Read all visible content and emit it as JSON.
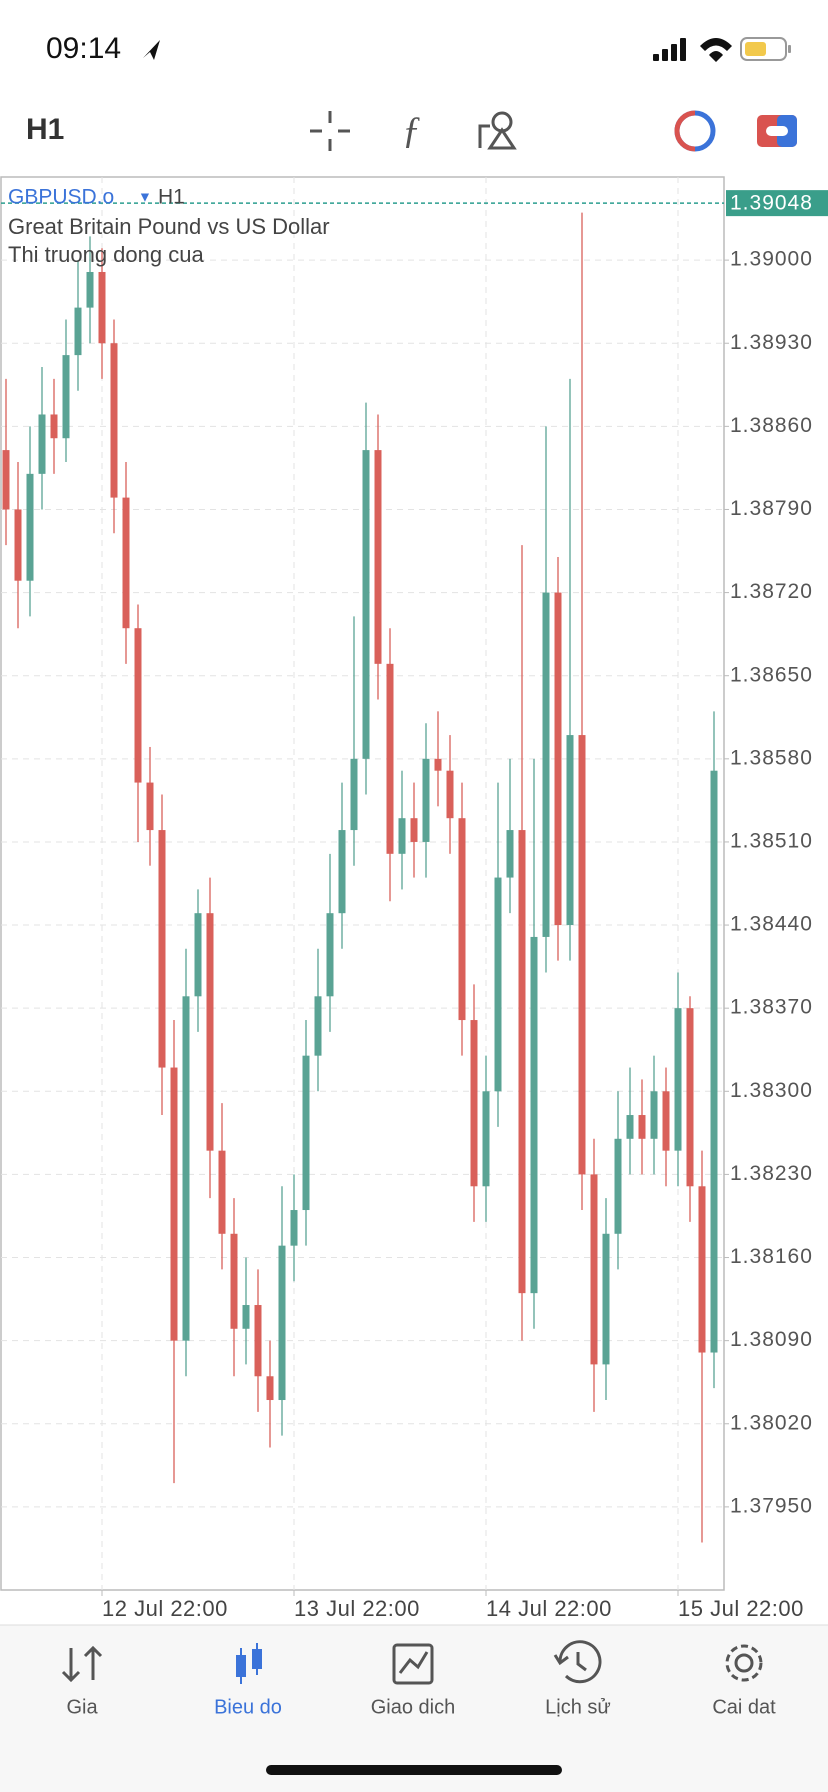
{
  "status_bar": {
    "time": "09:14"
  },
  "toolbar": {
    "timeframe": "H1"
  },
  "chart_data": {
    "type": "candlestick",
    "symbol": "GBPUSD.o",
    "timeframe": "H1",
    "description": "Great Britain Pound vs US Dollar",
    "status": "Thi truong dong cua",
    "open": [
      1.3884,
      1.3879,
      1.3873,
      1.3882,
      1.3887,
      1.3885,
      1.3892,
      1.3896,
      1.3899,
      1.3893,
      1.388,
      1.3869,
      1.3856,
      1.3852,
      1.3832,
      1.3809,
      1.3838,
      1.3845,
      1.3825,
      1.3818,
      1.381,
      1.3812,
      1.3806,
      1.3804,
      1.3817,
      1.382,
      1.3833,
      1.3838,
      1.3845,
      1.3852,
      1.3858,
      1.3884,
      1.3866,
      1.385,
      1.3853,
      1.3851,
      1.3858,
      1.3857,
      1.3853,
      1.3836,
      1.3822,
      1.383,
      1.3848,
      1.3852,
      1.3813,
      1.3843,
      1.3872,
      1.3844,
      1.386,
      1.3823,
      1.3807,
      1.3818,
      1.3826,
      1.3828,
      1.3826,
      1.383,
      1.3825,
      1.3837,
      1.3822,
      1.3808
    ],
    "high": [
      1.389,
      1.3883,
      1.3886,
      1.3891,
      1.389,
      1.3895,
      1.39,
      1.3902,
      1.3901,
      1.3895,
      1.3883,
      1.3871,
      1.3859,
      1.3855,
      1.3836,
      1.3842,
      1.3847,
      1.3848,
      1.3829,
      1.3821,
      1.3816,
      1.3815,
      1.3809,
      1.3822,
      1.3823,
      1.3836,
      1.3842,
      1.385,
      1.3856,
      1.387,
      1.3888,
      1.3887,
      1.3869,
      1.3857,
      1.3856,
      1.3861,
      1.3862,
      1.386,
      1.3856,
      1.3839,
      1.3833,
      1.3856,
      1.3858,
      1.3876,
      1.3858,
      1.3886,
      1.3875,
      1.389,
      1.3904,
      1.3826,
      1.3821,
      1.383,
      1.3832,
      1.3831,
      1.3833,
      1.3832,
      1.384,
      1.3838,
      1.3825,
      1.3862
    ],
    "low": [
      1.3876,
      1.3869,
      1.387,
      1.3879,
      1.3882,
      1.3883,
      1.3889,
      1.3893,
      1.389,
      1.3877,
      1.3866,
      1.3851,
      1.3849,
      1.3828,
      1.3797,
      1.3806,
      1.3835,
      1.3821,
      1.3815,
      1.3806,
      1.3807,
      1.3803,
      1.38,
      1.3801,
      1.3814,
      1.3817,
      1.383,
      1.3835,
      1.3842,
      1.3849,
      1.3855,
      1.3863,
      1.3846,
      1.3847,
      1.3848,
      1.3848,
      1.3854,
      1.385,
      1.3833,
      1.3819,
      1.3819,
      1.3827,
      1.3845,
      1.3809,
      1.381,
      1.384,
      1.3841,
      1.3841,
      1.382,
      1.3803,
      1.3804,
      1.3815,
      1.3823,
      1.3823,
      1.3823,
      1.3822,
      1.3822,
      1.3819,
      1.3792,
      1.3805
    ],
    "close": [
      1.3879,
      1.3873,
      1.3882,
      1.3887,
      1.3885,
      1.3892,
      1.3896,
      1.3899,
      1.3893,
      1.388,
      1.3869,
      1.3856,
      1.3852,
      1.3832,
      1.3809,
      1.3838,
      1.3845,
      1.3825,
      1.3818,
      1.381,
      1.3812,
      1.3806,
      1.3804,
      1.3817,
      1.382,
      1.3833,
      1.3838,
      1.3845,
      1.3852,
      1.3858,
      1.3884,
      1.3866,
      1.385,
      1.3853,
      1.3851,
      1.3858,
      1.3857,
      1.3853,
      1.3836,
      1.3822,
      1.383,
      1.3848,
      1.3852,
      1.3813,
      1.3843,
      1.3872,
      1.3844,
      1.386,
      1.3823,
      1.3807,
      1.3818,
      1.3826,
      1.3828,
      1.3826,
      1.383,
      1.3825,
      1.3837,
      1.3822,
      1.3808,
      1.3857
    ],
    "up_color": "#5aa394",
    "down_color": "#d9605a",
    "ylim": [
      1.3788,
      1.3907
    ],
    "yticks": [
      {
        "value": 1.39,
        "label": "1.39000"
      },
      {
        "value": 1.3893,
        "label": "1.38930"
      },
      {
        "value": 1.3886,
        "label": "1.38860"
      },
      {
        "value": 1.3879,
        "label": "1.38790"
      },
      {
        "value": 1.3872,
        "label": "1.38720"
      },
      {
        "value": 1.3865,
        "label": "1.38650"
      },
      {
        "value": 1.3858,
        "label": "1.38580"
      },
      {
        "value": 1.3851,
        "label": "1.38510"
      },
      {
        "value": 1.3844,
        "label": "1.38440"
      },
      {
        "value": 1.3837,
        "label": "1.38370"
      },
      {
        "value": 1.383,
        "label": "1.38300"
      },
      {
        "value": 1.3823,
        "label": "1.38230"
      },
      {
        "value": 1.3816,
        "label": "1.38160"
      },
      {
        "value": 1.3809,
        "label": "1.38090"
      },
      {
        "value": 1.3802,
        "label": "1.38020"
      },
      {
        "value": 1.3795,
        "label": "1.37950"
      }
    ],
    "xticks": [
      {
        "value": 8,
        "label": "12 Jul 22:00"
      },
      {
        "value": 24,
        "label": "13 Jul 22:00"
      },
      {
        "value": 40,
        "label": "14 Jul 22:00"
      },
      {
        "value": 56,
        "label": "15 Jul 22:00"
      }
    ],
    "current_price": 1.39048,
    "grid": true
  },
  "nav": {
    "items": [
      "Gia",
      "Bieu do",
      "Giao dich",
      "Lịch sử",
      "Cai dat"
    ],
    "active": 1
  }
}
